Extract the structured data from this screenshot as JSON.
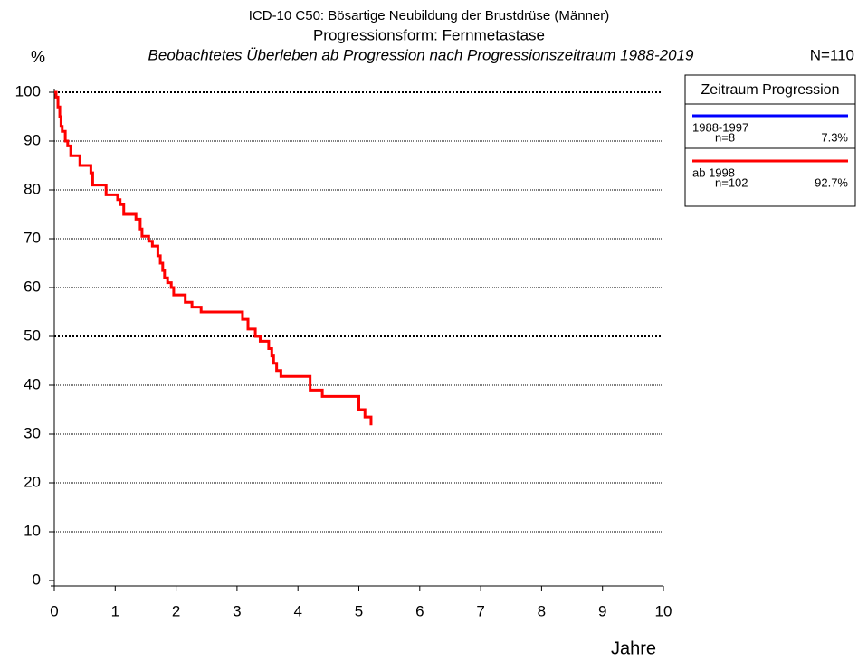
{
  "chart_data": {
    "type": "step",
    "title": "ICD-10 C50: Bösartige Neubildung der Brustdrüse (Männer)",
    "subtitle": "Progressionsform: Fernmetastase",
    "caption": "Beobachtetes Überleben ab Progression nach Progressionszeitraum 1988-2019",
    "n_total": "N=110",
    "ylabel": "%",
    "xlabel": "Jahre",
    "legend_title": "Zeitraum Progression",
    "xlim": [
      0,
      10
    ],
    "xticks": [
      0,
      1,
      2,
      3,
      4,
      5,
      6,
      7,
      8,
      9,
      10
    ],
    "ylim": [
      0,
      100
    ],
    "yticks": [
      0,
      10,
      20,
      30,
      40,
      50,
      60,
      70,
      80,
      90,
      100
    ],
    "grid": true,
    "series": [
      {
        "name": "1988-1997",
        "n": "n=8",
        "share": "7.3%",
        "color": "#0000ff",
        "x": [],
        "values": []
      },
      {
        "name": "ab 1998",
        "n": "n=102",
        "share": "92.7%",
        "color": "#ff0000",
        "x": [
          0,
          0.03,
          0.03,
          0.06,
          0.06,
          0.09,
          0.09,
          0.11,
          0.11,
          0.13,
          0.13,
          0.18,
          0.18,
          0.22,
          0.22,
          0.27,
          0.27,
          0.42,
          0.42,
          0.6,
          0.6,
          0.63,
          0.63,
          0.85,
          0.85,
          1.04,
          1.04,
          1.08,
          1.08,
          1.14,
          1.14,
          1.34,
          1.34,
          1.41,
          1.41,
          1.44,
          1.44,
          1.55,
          1.55,
          1.61,
          1.61,
          1.7,
          1.7,
          1.74,
          1.74,
          1.78,
          1.78,
          1.81,
          1.81,
          1.86,
          1.86,
          1.92,
          1.92,
          1.96,
          1.96,
          2.15,
          2.15,
          2.26,
          2.26,
          2.41,
          2.41,
          3.09,
          3.09,
          3.18,
          3.18,
          3.3,
          3.3,
          3.38,
          3.38,
          3.52,
          3.52,
          3.57,
          3.57,
          3.6,
          3.6,
          3.65,
          3.65,
          3.72,
          3.72,
          4.2,
          4.2,
          4.4,
          4.4,
          5.0,
          5.0,
          5.1,
          5.1,
          5.2,
          5.2
        ],
        "values": [
          100,
          100,
          99,
          99,
          97,
          97,
          95,
          95,
          93,
          93,
          92,
          92,
          90,
          90,
          89,
          89,
          87,
          87,
          85,
          85,
          83.5,
          83.5,
          81,
          81,
          79,
          79,
          78,
          78,
          77,
          77,
          75,
          75,
          74,
          74,
          72,
          72,
          70.5,
          70.5,
          69.5,
          69.5,
          68.5,
          68.5,
          66.5,
          66.5,
          65,
          65,
          63.5,
          63.5,
          62,
          62,
          61,
          61,
          60,
          60,
          58.5,
          58.5,
          57,
          57,
          56,
          56,
          55,
          55,
          53.5,
          53.5,
          51.5,
          51.5,
          50,
          50,
          49,
          49,
          47.5,
          47.5,
          46,
          46,
          44.5,
          44.5,
          43,
          43,
          41.8,
          41.8,
          39,
          39,
          37.7,
          37.7,
          35,
          35,
          33.5,
          33.5,
          31.8
        ]
      }
    ]
  }
}
